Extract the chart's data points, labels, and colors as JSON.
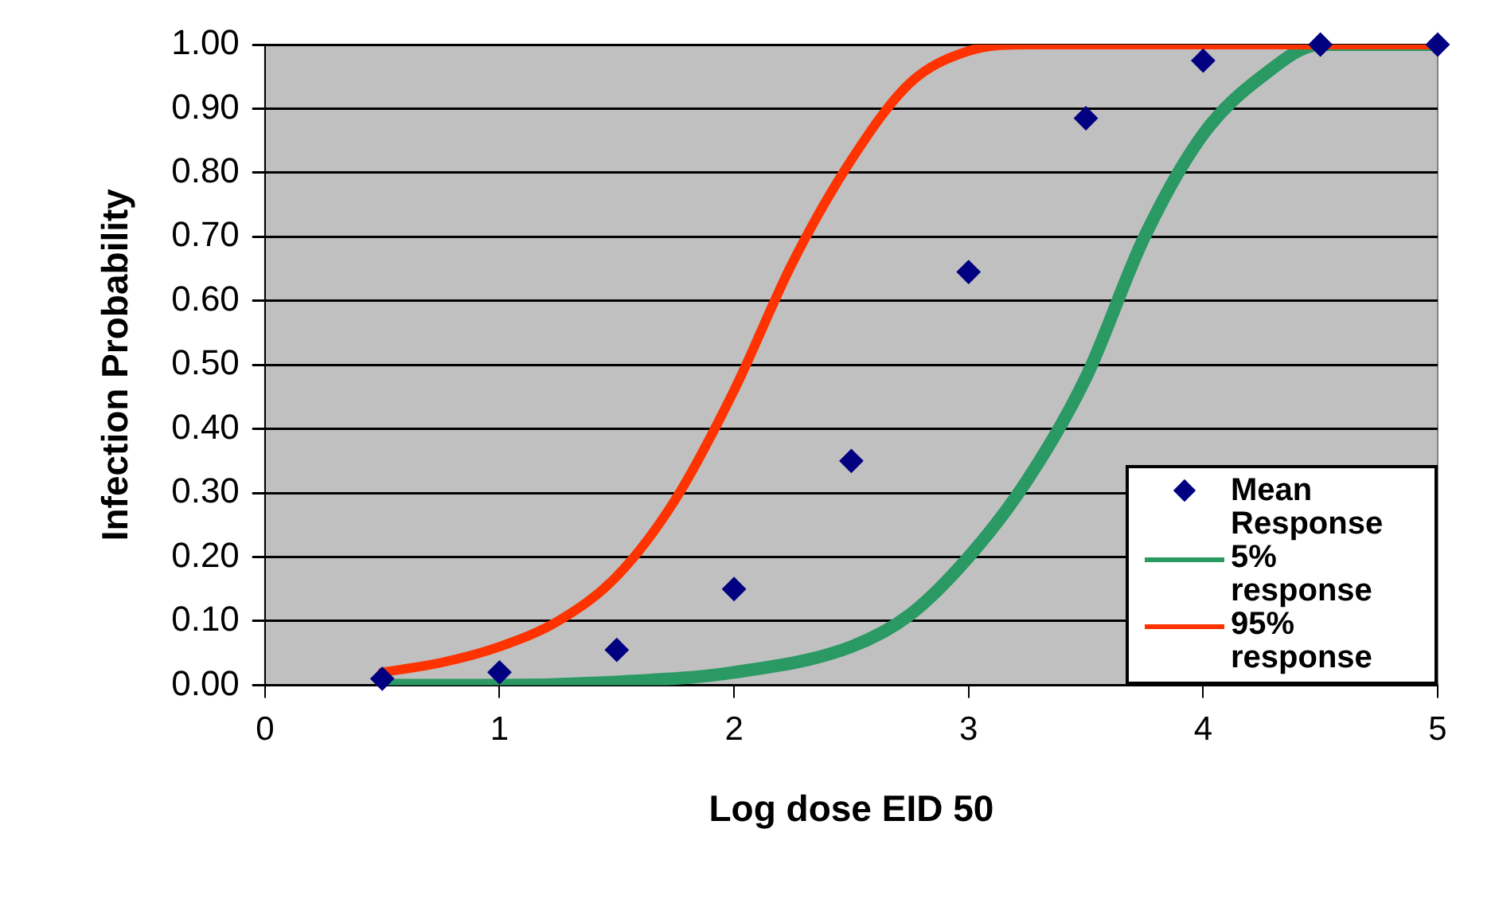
{
  "chart_data": {
    "type": "scatter",
    "xlabel": "Log dose EID 50",
    "ylabel": "Infection Probability",
    "xlim": [
      0,
      5
    ],
    "xticks": [
      0,
      1,
      2,
      3,
      4,
      5
    ],
    "ylim": [
      0,
      1
    ],
    "yticks": [
      {
        "value": 0,
        "label": "0.00"
      },
      {
        "value": 0.1,
        "label": "0.10"
      },
      {
        "value": 0.2,
        "label": "0.20"
      },
      {
        "value": 0.3,
        "label": "0.30"
      },
      {
        "value": 0.4,
        "label": "0.40"
      },
      {
        "value": 0.5,
        "label": "0.50"
      },
      {
        "value": 0.6,
        "label": "0.60"
      },
      {
        "value": 0.7,
        "label": "0.70"
      },
      {
        "value": 0.8,
        "label": "0.80"
      },
      {
        "value": 0.9,
        "label": "0.90"
      },
      {
        "value": 1,
        "label": "1.00"
      }
    ],
    "grid": "y",
    "legend": "bottom right",
    "series": [
      {
        "name": "Mean Response",
        "marker": "diamond",
        "color": "#000080",
        "x": [
          0.5,
          1,
          1.5,
          2,
          2.5,
          3,
          3.5,
          4,
          4.5,
          5
        ],
        "values": [
          0.01,
          0.02,
          0.055,
          0.15,
          0.35,
          0.645,
          0.885,
          0.975,
          1,
          1
        ]
      },
      {
        "name": "5% response",
        "type": "line",
        "marker": "none",
        "color": "#2a9964",
        "x": [
          0.5,
          1,
          1.5,
          2,
          2.5,
          2.75,
          3,
          3.25,
          3.5,
          3.75,
          4,
          4.25,
          4.5,
          5
        ],
        "values": [
          0,
          0,
          0.005,
          0.02,
          0.06,
          0.11,
          0.2,
          0.32,
          0.48,
          0.7,
          0.86,
          0.95,
          1,
          1
        ]
      },
      {
        "name": "95% response",
        "type": "line",
        "marker": "none",
        "color": "#ff3300",
        "x": [
          0.5,
          0.75,
          1,
          1.25,
          1.5,
          1.75,
          2,
          2.25,
          2.5,
          2.75,
          3,
          3.25,
          3.5,
          4,
          4.5,
          5
        ],
        "values": [
          0.02,
          0.035,
          0.06,
          0.1,
          0.17,
          0.29,
          0.46,
          0.66,
          0.82,
          0.94,
          0.99,
          1,
          1,
          1,
          1,
          1
        ]
      }
    ]
  }
}
